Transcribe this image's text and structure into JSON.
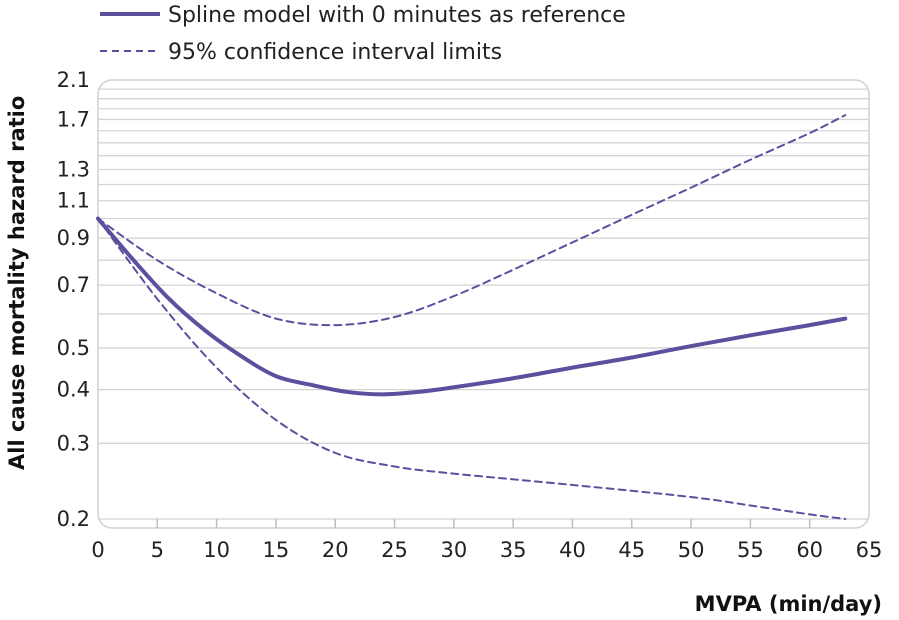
{
  "chart_data": {
    "type": "line",
    "xlabel": "MVPA (min/day)",
    "ylabel": "All cause mortality hazard ratio",
    "xlim": [
      0,
      65
    ],
    "ylim": [
      0.2,
      2.1
    ],
    "y_scale": "log",
    "grid": "horizontal",
    "legend_placement": "top-left",
    "x_ticks": [
      "0",
      "5",
      "10",
      "15",
      "20",
      "25",
      "30",
      "35",
      "40",
      "45",
      "50",
      "55",
      "60",
      "65"
    ],
    "y_ticks": [
      "0.2",
      "0.3",
      "0.4",
      "0.5",
      "0.7",
      "0.9",
      "1.1",
      "1.3",
      "1.7",
      "2.1"
    ],
    "series": [
      {
        "name": "Spline model with 0 minutes as reference",
        "style": "solid",
        "color": "#5b4f9e",
        "x": [
          0,
          3,
          6,
          9,
          12,
          15,
          18,
          21,
          24,
          27,
          30,
          35,
          40,
          45,
          50,
          55,
          60,
          63
        ],
        "y": [
          1.0,
          0.8,
          0.65,
          0.55,
          0.48,
          0.43,
          0.41,
          0.395,
          0.39,
          0.395,
          0.405,
          0.425,
          0.45,
          0.475,
          0.505,
          0.535,
          0.565,
          0.585
        ]
      },
      {
        "name": "95% confidence interval limits",
        "style": "dashed",
        "color": "#5b4f9e",
        "x": [
          0,
          5,
          10,
          15,
          20,
          25,
          30,
          35,
          40,
          45,
          50,
          55,
          60,
          63
        ],
        "y": [
          1.0,
          0.8,
          0.67,
          0.585,
          0.565,
          0.59,
          0.66,
          0.76,
          0.88,
          1.02,
          1.18,
          1.37,
          1.58,
          1.74
        ]
      },
      {
        "name": "95% confidence interval limits",
        "style": "dashed",
        "color": "#5b4f9e",
        "x": [
          0,
          5,
          10,
          15,
          20,
          25,
          30,
          40,
          50,
          55,
          60,
          63
        ],
        "y": [
          1.0,
          0.65,
          0.45,
          0.34,
          0.285,
          0.265,
          0.255,
          0.24,
          0.225,
          0.215,
          0.205,
          0.2
        ]
      }
    ],
    "legend": [
      {
        "label": "Spline model with 0 minutes as reference",
        "style": "solid"
      },
      {
        "label": "95% confidence interval limits",
        "style": "dashed"
      }
    ]
  }
}
